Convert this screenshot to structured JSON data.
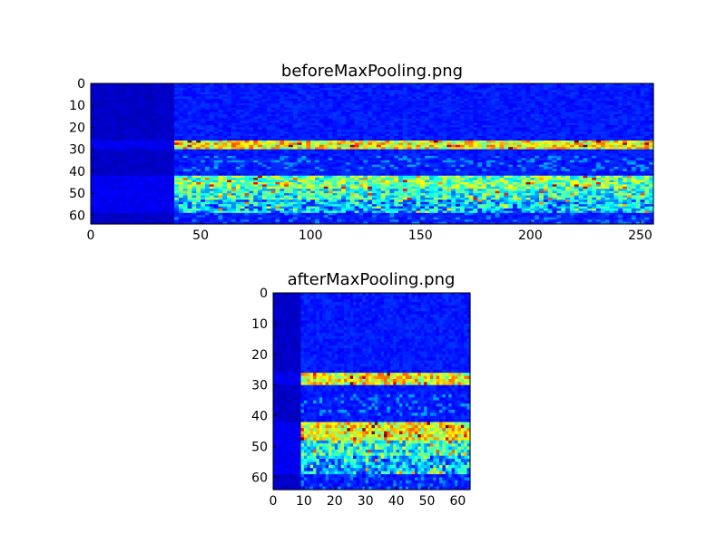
{
  "chart_data": [
    {
      "type": "heatmap",
      "title": "beforeMaxPooling.png",
      "xlabel": "",
      "ylabel": "",
      "xlim": [
        0,
        256
      ],
      "ylim": [
        64,
        0
      ],
      "xticks": [
        0,
        50,
        100,
        150,
        200,
        250
      ],
      "yticks": [
        0,
        10,
        20,
        30,
        40,
        50,
        60
      ],
      "colormap": "jet",
      "rows": 64,
      "cols": 256,
      "dark_region_end_col": 37,
      "bands": [
        {
          "rows": [
            26,
            29
          ],
          "intensity": "high"
        },
        {
          "rows": [
            42,
            47
          ],
          "intensity": "medium-high"
        },
        {
          "rows": [
            48,
            52
          ],
          "intensity": "medium"
        },
        {
          "rows": [
            53,
            58
          ],
          "intensity": "low-medium"
        }
      ]
    },
    {
      "type": "heatmap",
      "title": "afterMaxPooling.png",
      "xlabel": "",
      "ylabel": "",
      "xlim": [
        0,
        64
      ],
      "ylim": [
        64,
        0
      ],
      "xticks": [
        0,
        10,
        20,
        30,
        40,
        50,
        60
      ],
      "yticks": [
        0,
        10,
        20,
        30,
        40,
        50,
        60
      ],
      "colormap": "jet",
      "rows": 64,
      "cols": 64,
      "dark_region_end_col": 9,
      "bands": [
        {
          "rows": [
            26,
            29
          ],
          "intensity": "high"
        },
        {
          "rows": [
            42,
            47
          ],
          "intensity": "high"
        },
        {
          "rows": [
            48,
            52
          ],
          "intensity": "medium"
        },
        {
          "rows": [
            53,
            58
          ],
          "intensity": "low-medium"
        }
      ]
    }
  ],
  "colors": {
    "background_dark": "#00007f",
    "background": "#0000d0",
    "low": "#0050ff",
    "mid": "#00e0ff",
    "high": "#ffff00",
    "peak": "#ff0000"
  }
}
